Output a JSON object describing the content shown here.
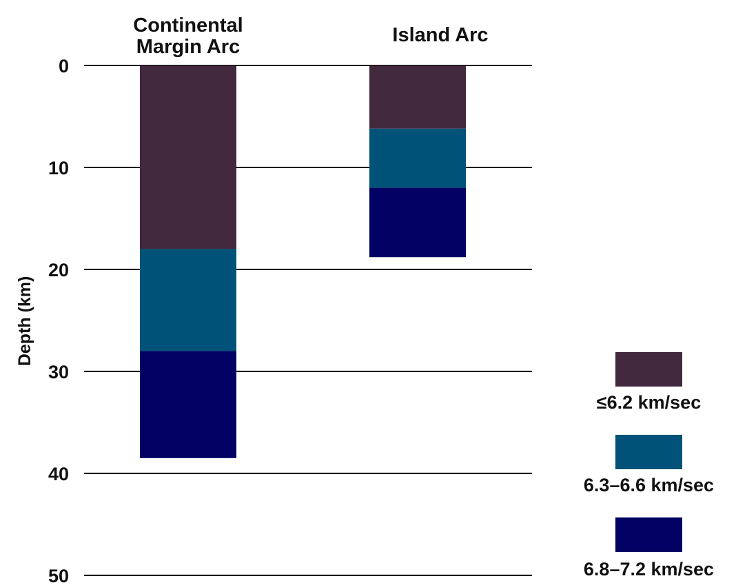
{
  "chart_data": {
    "type": "bar",
    "subtype": "stacked-depth-column",
    "ylabel": "Depth (km)",
    "ylim": [
      0,
      50
    ],
    "y_inverted": true,
    "y_ticks": [
      0,
      10,
      20,
      30,
      40,
      50
    ],
    "grid": "horizontal",
    "legend_position": "bottom-right",
    "columns": [
      {
        "title_lines": [
          "Continental",
          "Margin Arc"
        ],
        "layers": [
          {
            "name": "≤6.2 km/sec",
            "top": 0,
            "bottom": 18
          },
          {
            "name": "6.3–6.6 km/sec",
            "top": 18,
            "bottom": 28
          },
          {
            "name": "6.8–7.2 km/sec",
            "top": 28,
            "bottom": 38.5
          }
        ]
      },
      {
        "title_lines": [
          "Island Arc"
        ],
        "layers": [
          {
            "name": "≤6.2 km/sec",
            "top": 0,
            "bottom": 6.2
          },
          {
            "name": "6.3–6.6 km/sec",
            "top": 6.2,
            "bottom": 12
          },
          {
            "name": "6.8–7.2 km/sec",
            "top": 12,
            "bottom": 18.8
          }
        ]
      }
    ],
    "legend": [
      {
        "label": "≤6.2 km/sec",
        "color": "#43293e"
      },
      {
        "label": "6.3–6.6 km/sec",
        "color": "#005278"
      },
      {
        "label": "6.8–7.2 km/sec",
        "color": "#020264"
      }
    ]
  }
}
